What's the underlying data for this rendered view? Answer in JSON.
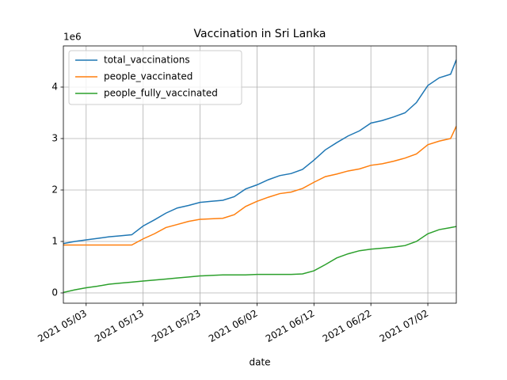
{
  "chart_data": {
    "type": "line",
    "title": "Vaccination in Sri Lanka",
    "x_label": "date",
    "y_offset_label": "1e6",
    "x": [
      "2021-04-29",
      "2021-05-01",
      "2021-05-03",
      "2021-05-05",
      "2021-05-07",
      "2021-05-09",
      "2021-05-11",
      "2021-05-13",
      "2021-05-15",
      "2021-05-17",
      "2021-05-19",
      "2021-05-21",
      "2021-05-23",
      "2021-05-25",
      "2021-05-27",
      "2021-05-29",
      "2021-05-31",
      "2021-06-02",
      "2021-06-04",
      "2021-06-06",
      "2021-06-08",
      "2021-06-10",
      "2021-06-12",
      "2021-06-14",
      "2021-06-16",
      "2021-06-18",
      "2021-06-20",
      "2021-06-22",
      "2021-06-24",
      "2021-06-26",
      "2021-06-28",
      "2021-06-30",
      "2021-07-02",
      "2021-07-04",
      "2021-07-06",
      "2021-07-07"
    ],
    "series": [
      {
        "name": "total_vaccinations",
        "color": "#1f77b4",
        "values": [
          0.96,
          1.0,
          1.03,
          1.06,
          1.09,
          1.11,
          1.13,
          1.3,
          1.42,
          1.55,
          1.65,
          1.7,
          1.76,
          1.78,
          1.8,
          1.87,
          2.02,
          2.1,
          2.2,
          2.28,
          2.32,
          2.4,
          2.58,
          2.78,
          2.92,
          3.05,
          3.15,
          3.3,
          3.35,
          3.42,
          3.5,
          3.7,
          4.03,
          4.18,
          4.25,
          4.53
        ]
      },
      {
        "name": "people_vaccinated",
        "color": "#ff7f0e",
        "values": [
          0.93,
          0.93,
          0.93,
          0.93,
          0.93,
          0.93,
          0.93,
          1.05,
          1.15,
          1.27,
          1.33,
          1.39,
          1.43,
          1.44,
          1.45,
          1.52,
          1.68,
          1.78,
          1.86,
          1.93,
          1.96,
          2.03,
          2.15,
          2.26,
          2.31,
          2.37,
          2.41,
          2.48,
          2.51,
          2.56,
          2.62,
          2.7,
          2.88,
          2.95,
          3.0,
          3.24
        ]
      },
      {
        "name": "people_fully_vaccinated",
        "color": "#2ca02c",
        "values": [
          0.01,
          0.06,
          0.1,
          0.13,
          0.17,
          0.19,
          0.21,
          0.23,
          0.25,
          0.27,
          0.29,
          0.31,
          0.33,
          0.34,
          0.35,
          0.35,
          0.35,
          0.36,
          0.36,
          0.36,
          0.36,
          0.37,
          0.43,
          0.55,
          0.68,
          0.76,
          0.82,
          0.85,
          0.87,
          0.89,
          0.92,
          1.0,
          1.15,
          1.23,
          1.27,
          1.29
        ]
      }
    ],
    "xlim": [
      "2021-04-29",
      "2021-07-07"
    ],
    "xticks": [
      {
        "value": "2021-05-03",
        "label": "2021 05/03"
      },
      {
        "value": "2021-05-13",
        "label": "2021 05/13"
      },
      {
        "value": "2021-05-23",
        "label": "2021 05/23"
      },
      {
        "value": "2021-06-02",
        "label": "2021 06/02"
      },
      {
        "value": "2021-06-12",
        "label": "2021 06/12"
      },
      {
        "value": "2021-06-22",
        "label": "2021 06/22"
      },
      {
        "value": "2021-07-02",
        "label": "2021 07/02"
      }
    ],
    "ylim": [
      -0.2,
      4.8
    ],
    "yticks": [
      0,
      1,
      2,
      3,
      4
    ],
    "grid": true,
    "legend": "upper left"
  }
}
